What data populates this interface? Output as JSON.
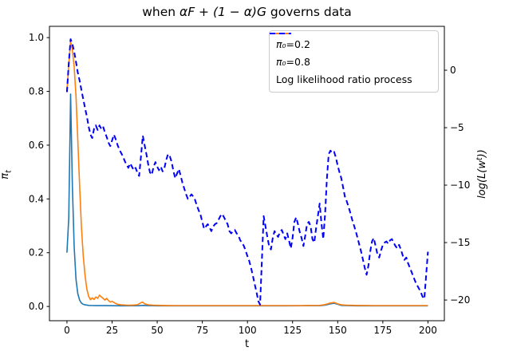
{
  "title": {
    "prefix": "when ",
    "math": "αF + (1 − α)G",
    "suffix": " governs data"
  },
  "axes": {
    "x_label": "t",
    "x_tick_labels": [
      "0",
      "25",
      "50",
      "75",
      "100",
      "125",
      "150",
      "175",
      "200"
    ],
    "x_tick_values": [
      0,
      25,
      50,
      75,
      100,
      125,
      150,
      175,
      200
    ],
    "left_label": {
      "base": "π",
      "sub": "t"
    },
    "left_tick_labels": [
      "0.0",
      "0.2",
      "0.4",
      "0.6",
      "0.8",
      "1.0"
    ],
    "left_tick_values": [
      0,
      0.2,
      0.4,
      0.6,
      0.8,
      1.0
    ],
    "right_label": {
      "pre": "log(L(w",
      "sup": "t",
      "post": "))"
    },
    "right_tick_labels": [
      "0",
      "−5",
      "−10",
      "−15",
      "−20"
    ],
    "right_tick_values": [
      0,
      -5,
      -10,
      -15,
      -20
    ]
  },
  "legend": {
    "entries": [
      {
        "label_math": "π₀",
        "label_rest": "=0.2",
        "color": "#1f77b4",
        "dash": false
      },
      {
        "label_math": "π₀",
        "label_rest": "=0.8",
        "color": "#ff7f0e",
        "dash": false
      },
      {
        "label_math": "",
        "label_rest": "Log likelihood ratio process",
        "color": "#0000ff",
        "dash": true
      }
    ]
  },
  "colors": {
    "spine": "#000000",
    "background": "#ffffff"
  },
  "chart_data": {
    "type": "line",
    "title": "when αF + (1 − α)G governs data",
    "xlabel": "t",
    "ylabel_left": "π_t",
    "ylabel_right": "log(L(w^t))",
    "xlim": [
      -9.7,
      209.1
    ],
    "ylim_left": [
      -0.053,
      1.042
    ],
    "ylim_right": [
      -21.8,
      3.82
    ],
    "grid": false,
    "legend_position": "upper right",
    "series": [
      {
        "name": "pi0=0.2",
        "axis": "left",
        "color": "#1f77b4",
        "style": "solid",
        "width": 1.6,
        "points": [
          [
            0,
            0.2
          ],
          [
            1,
            0.33
          ],
          [
            2,
            0.79
          ],
          [
            3,
            0.45
          ],
          [
            4,
            0.22
          ],
          [
            5,
            0.1
          ],
          [
            6,
            0.048
          ],
          [
            7,
            0.024
          ],
          [
            8,
            0.013
          ],
          [
            9,
            0.008
          ],
          [
            10,
            0.006
          ],
          [
            12,
            0.004
          ],
          [
            14,
            0.0035
          ],
          [
            16,
            0.003
          ],
          [
            20,
            0.003
          ],
          [
            25,
            0.0028
          ],
          [
            30,
            0.0026
          ],
          [
            40,
            0.0028
          ],
          [
            42,
            0.004
          ],
          [
            44,
            0.003
          ],
          [
            50,
            0.0025
          ],
          [
            60,
            0.0025
          ],
          [
            80,
            0.0025
          ],
          [
            100,
            0.0025
          ],
          [
            120,
            0.0025
          ],
          [
            140,
            0.0028
          ],
          [
            143,
            0.005
          ],
          [
            146,
            0.01
          ],
          [
            148,
            0.012
          ],
          [
            150,
            0.008
          ],
          [
            152,
            0.004
          ],
          [
            155,
            0.003
          ],
          [
            160,
            0.0025
          ],
          [
            170,
            0.0025
          ],
          [
            180,
            0.0025
          ],
          [
            190,
            0.0025
          ],
          [
            200,
            0.0025
          ]
        ]
      },
      {
        "name": "pi0=0.8",
        "axis": "left",
        "color": "#ff7f0e",
        "style": "solid",
        "width": 1.6,
        "points": [
          [
            0,
            0.8
          ],
          [
            1,
            0.9
          ],
          [
            2,
            0.985
          ],
          [
            3,
            0.955
          ],
          [
            4,
            0.89
          ],
          [
            5,
            0.78
          ],
          [
            6,
            0.62
          ],
          [
            7,
            0.45
          ],
          [
            8,
            0.3
          ],
          [
            9,
            0.19
          ],
          [
            10,
            0.115
          ],
          [
            11,
            0.065
          ],
          [
            12,
            0.038
          ],
          [
            13,
            0.025
          ],
          [
            14,
            0.032
          ],
          [
            15,
            0.026
          ],
          [
            16,
            0.035
          ],
          [
            17,
            0.03
          ],
          [
            18,
            0.042
          ],
          [
            19,
            0.036
          ],
          [
            20,
            0.03
          ],
          [
            21,
            0.024
          ],
          [
            22,
            0.03
          ],
          [
            23,
            0.022
          ],
          [
            24,
            0.016
          ],
          [
            25,
            0.019
          ],
          [
            26,
            0.015
          ],
          [
            27,
            0.011
          ],
          [
            28,
            0.008
          ],
          [
            30,
            0.006
          ],
          [
            33,
            0.005
          ],
          [
            36,
            0.0045
          ],
          [
            39,
            0.006
          ],
          [
            41,
            0.014
          ],
          [
            42,
            0.016
          ],
          [
            43,
            0.01
          ],
          [
            45,
            0.006
          ],
          [
            48,
            0.0045
          ],
          [
            52,
            0.004
          ],
          [
            56,
            0.0038
          ],
          [
            60,
            0.0035
          ],
          [
            70,
            0.0035
          ],
          [
            80,
            0.0035
          ],
          [
            90,
            0.0035
          ],
          [
            100,
            0.0035
          ],
          [
            110,
            0.0035
          ],
          [
            120,
            0.0035
          ],
          [
            130,
            0.0035
          ],
          [
            140,
            0.004
          ],
          [
            143,
            0.007
          ],
          [
            146,
            0.013
          ],
          [
            148,
            0.015
          ],
          [
            150,
            0.01
          ],
          [
            152,
            0.006
          ],
          [
            155,
            0.0045
          ],
          [
            160,
            0.004
          ],
          [
            170,
            0.0035
          ],
          [
            180,
            0.0035
          ],
          [
            190,
            0.0035
          ],
          [
            200,
            0.0035
          ]
        ]
      },
      {
        "name": "Log likelihood ratio process",
        "axis": "right",
        "color": "#0000ff",
        "style": "dashed",
        "width": 2,
        "points": [
          [
            0,
            -1.9
          ],
          [
            1,
            0.6
          ],
          [
            2,
            2.7
          ],
          [
            3,
            2.3
          ],
          [
            4,
            1.6
          ],
          [
            5,
            0.7
          ],
          [
            6,
            -0.2
          ],
          [
            7,
            -0.9
          ],
          [
            8,
            -1.7
          ],
          [
            9,
            -2.5
          ],
          [
            10,
            -3.3
          ],
          [
            11,
            -4.0
          ],
          [
            12,
            -4.9
          ],
          [
            13,
            -5.6
          ],
          [
            14,
            -5.9
          ],
          [
            15,
            -5.1
          ],
          [
            16,
            -4.8
          ],
          [
            17,
            -5.2
          ],
          [
            18,
            -4.8
          ],
          [
            19,
            -5.1
          ],
          [
            20,
            -4.9
          ],
          [
            21,
            -5.4
          ],
          [
            22,
            -5.8
          ],
          [
            23,
            -6.3
          ],
          [
            24,
            -6.6
          ],
          [
            25,
            -6.1
          ],
          [
            26,
            -5.6
          ],
          [
            27,
            -6.0
          ],
          [
            28,
            -6.5
          ],
          [
            29,
            -6.9
          ],
          [
            30,
            -7.2
          ],
          [
            31,
            -7.5
          ],
          [
            32,
            -7.9
          ],
          [
            33,
            -8.2
          ],
          [
            34,
            -8.5
          ],
          [
            35,
            -8.1
          ],
          [
            36,
            -8.4
          ],
          [
            37,
            -8.7
          ],
          [
            38,
            -8.5
          ],
          [
            39,
            -8.9
          ],
          [
            40,
            -9.2
          ],
          [
            41,
            -7.5
          ],
          [
            42,
            -5.7
          ],
          [
            43,
            -6.5
          ],
          [
            44,
            -7.3
          ],
          [
            45,
            -8.2
          ],
          [
            46,
            -8.9
          ],
          [
            47,
            -9.1
          ],
          [
            48,
            -8.4
          ],
          [
            49,
            -8.0
          ],
          [
            50,
            -8.4
          ],
          [
            51,
            -8.7
          ],
          [
            52,
            -8.4
          ],
          [
            53,
            -8.8
          ],
          [
            54,
            -8.5
          ],
          [
            55,
            -7.8
          ],
          [
            56,
            -7.3
          ],
          [
            57,
            -7.5
          ],
          [
            58,
            -8.0
          ],
          [
            59,
            -8.8
          ],
          [
            60,
            -9.4
          ],
          [
            61,
            -9.0
          ],
          [
            62,
            -8.6
          ],
          [
            63,
            -9.2
          ],
          [
            64,
            -9.8
          ],
          [
            65,
            -10.3
          ],
          [
            66,
            -10.8
          ],
          [
            67,
            -11.2
          ],
          [
            68,
            -11.0
          ],
          [
            69,
            -10.8
          ],
          [
            70,
            -11.0
          ],
          [
            71,
            -11.3
          ],
          [
            72,
            -11.8
          ],
          [
            73,
            -12.2
          ],
          [
            74,
            -12.6
          ],
          [
            75,
            -13.2
          ],
          [
            76,
            -13.8
          ],
          [
            77,
            -13.6
          ],
          [
            78,
            -13.4
          ],
          [
            79,
            -13.7
          ],
          [
            80,
            -14.0
          ],
          [
            81,
            -13.6
          ],
          [
            82,
            -13.4
          ],
          [
            83,
            -13.3
          ],
          [
            84,
            -13.0
          ],
          [
            85,
            -12.7
          ],
          [
            86,
            -12.5
          ],
          [
            87,
            -12.8
          ],
          [
            88,
            -13.1
          ],
          [
            89,
            -13.4
          ],
          [
            90,
            -14.0
          ],
          [
            91,
            -14.2
          ],
          [
            92,
            -14.0
          ],
          [
            93,
            -13.9
          ],
          [
            94,
            -14.2
          ],
          [
            95,
            -14.4
          ],
          [
            96,
            -14.8
          ],
          [
            97,
            -15.0
          ],
          [
            98,
            -15.3
          ],
          [
            99,
            -15.7
          ],
          [
            100,
            -16.2
          ],
          [
            101,
            -16.6
          ],
          [
            102,
            -17.2
          ],
          [
            103,
            -17.9
          ],
          [
            104,
            -18.6
          ],
          [
            105,
            -19.3
          ],
          [
            106,
            -20.1
          ],
          [
            107,
            -20.4
          ],
          [
            108,
            -16.5
          ],
          [
            109,
            -12.7
          ],
          [
            110,
            -13.6
          ],
          [
            111,
            -14.5
          ],
          [
            112,
            -15.3
          ],
          [
            113,
            -15.6
          ],
          [
            114,
            -14.6
          ],
          [
            115,
            -14.0
          ],
          [
            116,
            -14.3
          ],
          [
            117,
            -14.5
          ],
          [
            118,
            -14.1
          ],
          [
            119,
            -13.9
          ],
          [
            120,
            -14.3
          ],
          [
            121,
            -14.7
          ],
          [
            122,
            -14.2
          ],
          [
            123,
            -14.8
          ],
          [
            124,
            -15.5
          ],
          [
            125,
            -14.6
          ],
          [
            126,
            -13.2
          ],
          [
            127,
            -12.8
          ],
          [
            128,
            -13.4
          ],
          [
            129,
            -14.1
          ],
          [
            130,
            -14.6
          ],
          [
            131,
            -15.3
          ],
          [
            132,
            -14.4
          ],
          [
            133,
            -13.4
          ],
          [
            134,
            -13.2
          ],
          [
            135,
            -13.6
          ],
          [
            136,
            -14.7
          ],
          [
            137,
            -15.0
          ],
          [
            138,
            -13.8
          ],
          [
            139,
            -12.7
          ],
          [
            140,
            -11.6
          ],
          [
            141,
            -13.3
          ],
          [
            142,
            -14.7
          ],
          [
            143,
            -12.5
          ],
          [
            144,
            -9.5
          ],
          [
            145,
            -7.3
          ],
          [
            146,
            -7.0
          ],
          [
            147,
            -7.2
          ],
          [
            148,
            -7.1
          ],
          [
            149,
            -7.6
          ],
          [
            150,
            -8.3
          ],
          [
            151,
            -8.9
          ],
          [
            152,
            -9.4
          ],
          [
            153,
            -10.2
          ],
          [
            154,
            -11.0
          ],
          [
            155,
            -11.4
          ],
          [
            156,
            -11.9
          ],
          [
            157,
            -12.4
          ],
          [
            158,
            -13.0
          ],
          [
            159,
            -13.5
          ],
          [
            160,
            -14.0
          ],
          [
            161,
            -14.6
          ],
          [
            162,
            -15.2
          ],
          [
            163,
            -15.8
          ],
          [
            164,
            -16.5
          ],
          [
            165,
            -17.2
          ],
          [
            166,
            -17.8
          ],
          [
            167,
            -17.0
          ],
          [
            168,
            -15.8
          ],
          [
            169,
            -14.9
          ],
          [
            170,
            -14.6
          ],
          [
            171,
            -15.3
          ],
          [
            172,
            -16.0
          ],
          [
            173,
            -16.3
          ],
          [
            174,
            -15.7
          ],
          [
            175,
            -15.2
          ],
          [
            176,
            -15.0
          ],
          [
            177,
            -14.9
          ],
          [
            178,
            -15.1
          ],
          [
            179,
            -14.8
          ],
          [
            180,
            -14.7
          ],
          [
            181,
            -15.0
          ],
          [
            182,
            -15.3
          ],
          [
            183,
            -15.5
          ],
          [
            184,
            -15.2
          ],
          [
            185,
            -15.6
          ],
          [
            186,
            -16.1
          ],
          [
            187,
            -16.5
          ],
          [
            188,
            -16.3
          ],
          [
            189,
            -16.8
          ],
          [
            190,
            -17.2
          ],
          [
            191,
            -17.6
          ],
          [
            192,
            -18.0
          ],
          [
            193,
            -18.4
          ],
          [
            194,
            -18.7
          ],
          [
            195,
            -19.0
          ],
          [
            196,
            -19.3
          ],
          [
            197,
            -19.7
          ],
          [
            198,
            -19.9
          ],
          [
            199,
            -17.8
          ],
          [
            200,
            -15.8
          ]
        ]
      }
    ]
  }
}
